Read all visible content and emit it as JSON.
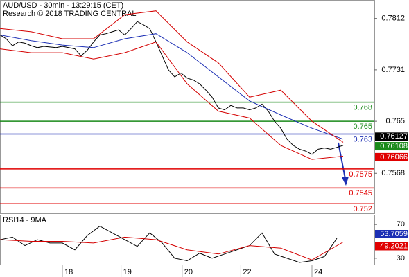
{
  "chart_data": [
    {
      "type": "line",
      "title": "AUD/USD - 30min - 13:29:15 (CET)",
      "subtitle": "Research © 2018 TRADING CENTRAL",
      "xlim": [
        0,
        300
      ],
      "xticks": [
        {
          "value": 50,
          "label": "18"
        },
        {
          "value": 97,
          "label": "19"
        },
        {
          "value": 146,
          "label": "20"
        },
        {
          "value": 193,
          "label": "22"
        },
        {
          "value": 250,
          "label": "24"
        }
      ],
      "ylim": [
        0.7505,
        0.784
      ],
      "yticks": [
        0.7812,
        0.7731,
        0.765,
        0.7568
      ],
      "series": [
        {
          "color": "#000000",
          "x": [
            0,
            5,
            10,
            15,
            20,
            25,
            30,
            35,
            40,
            45,
            50,
            55,
            60,
            65,
            70,
            75,
            80,
            85,
            90,
            95,
            100,
            105,
            110,
            115,
            120,
            125,
            130,
            135,
            140,
            145,
            150,
            155,
            160,
            165,
            170,
            175,
            180,
            185,
            190,
            195,
            200,
            205,
            210,
            215,
            220,
            225,
            230,
            235,
            240,
            245,
            250,
            255,
            260,
            265,
            270,
            275
          ],
          "values": [
            0.7786,
            0.778,
            0.7769,
            0.7775,
            0.7773,
            0.7769,
            0.7766,
            0.7768,
            0.7767,
            0.7766,
            0.7768,
            0.7766,
            0.7764,
            0.7753,
            0.7762,
            0.7775,
            0.7786,
            0.7788,
            0.7791,
            0.7794,
            0.7786,
            0.7796,
            0.7807,
            0.7802,
            0.7796,
            0.7775,
            0.7753,
            0.7731,
            0.772,
            0.7726,
            0.7718,
            0.7715,
            0.7709,
            0.7699,
            0.7688,
            0.7671,
            0.7668,
            0.7675,
            0.7671,
            0.7671,
            0.7668,
            0.7671,
            0.7677,
            0.7666,
            0.765,
            0.7639,
            0.7622,
            0.7612,
            0.7606,
            0.7603,
            0.7598,
            0.7606,
            0.7608,
            0.7606,
            0.7609,
            0.7612
          ]
        },
        {
          "color": "#1c2fb4",
          "x": [
            0,
            25,
            50,
            75,
            100,
            125,
            150,
            175,
            200,
            225,
            250,
            275
          ],
          "values": [
            0.7786,
            0.7777,
            0.777,
            0.7766,
            0.778,
            0.7788,
            0.7758,
            0.772,
            0.7682,
            0.766,
            0.7639,
            0.7622
          ]
        },
        {
          "color": "#d40000",
          "x": [
            0,
            25,
            50,
            75,
            100,
            125,
            150,
            175,
            200,
            225,
            250,
            275
          ],
          "values": [
            0.7796,
            0.7791,
            0.778,
            0.778,
            0.7818,
            0.7824,
            0.7775,
            0.7742,
            0.7688,
            0.7699,
            0.765,
            0.7617
          ]
        },
        {
          "color": "#d40000",
          "x": [
            0,
            25,
            50,
            75,
            100,
            125,
            150,
            175,
            200,
            225,
            250,
            275
          ],
          "values": [
            0.7764,
            0.7758,
            0.7758,
            0.7748,
            0.7758,
            0.7775,
            0.7709,
            0.7666,
            0.7655,
            0.7612,
            0.759,
            0.7595
          ]
        }
      ],
      "levels": [
        {
          "value": 0.768,
          "color": "#1a8a1a"
        },
        {
          "value": 0.765,
          "color": "#1a8a1a"
        },
        {
          "value": 0.763,
          "color": "#1c2fb4"
        },
        {
          "value": 0.7575,
          "color": "#e00000"
        },
        {
          "value": 0.7545,
          "color": "#e00000"
        },
        {
          "value": 0.752,
          "color": "#e00000"
        }
      ],
      "price_tags": [
        {
          "value": 0.76127,
          "color": "#000000"
        },
        {
          "value": 0.76108,
          "color": "#1a8a1a"
        },
        {
          "value": 0.76066,
          "color": "#e00000"
        }
      ]
    },
    {
      "type": "line",
      "title": "RSI14 - 9MA",
      "xlim": [
        0,
        300
      ],
      "ylim": [
        22.5,
        80.8
      ],
      "yticks": [
        70,
        30
      ],
      "series": [
        {
          "color": "#000000",
          "x": [
            0,
            10,
            20,
            30,
            40,
            50,
            60,
            70,
            80,
            90,
            100,
            110,
            120,
            130,
            140,
            150,
            160,
            170,
            180,
            190,
            200,
            210,
            220,
            230,
            240,
            250,
            260,
            270
          ],
          "values": [
            52,
            55,
            45,
            52,
            48,
            48,
            40,
            57,
            68,
            60,
            52,
            44,
            60,
            48,
            30,
            27,
            36,
            30,
            35,
            40,
            45,
            60,
            35,
            30,
            25,
            27,
            32,
            53.7
          ]
        },
        {
          "color": "#d40000",
          "x": [
            0,
            25,
            50,
            75,
            100,
            125,
            150,
            175,
            200,
            225,
            250,
            275
          ],
          "values": [
            52,
            50,
            50,
            48,
            55,
            52,
            40,
            35,
            45,
            42,
            28,
            49.2
          ]
        }
      ],
      "price_tags": [
        {
          "value": 53.7059,
          "color": "#1c2fb4"
        },
        {
          "value": 49.2021,
          "color": "#e00000"
        }
      ]
    }
  ]
}
